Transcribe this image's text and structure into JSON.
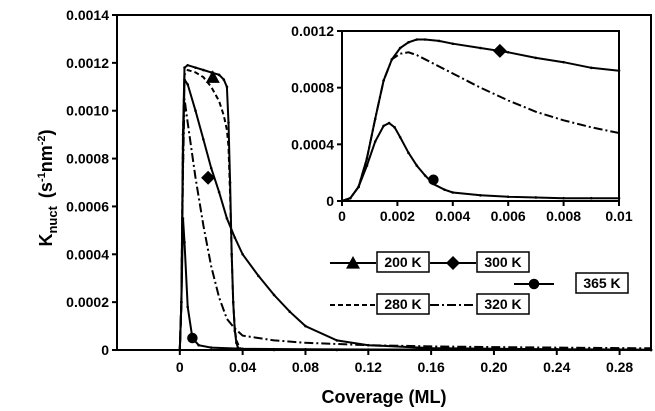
{
  "chart_data": [
    {
      "type": "line",
      "panel": "main",
      "xlabel": "Coverage (ML)",
      "ylabel_main": "K",
      "ylabel_sub": "nuct",
      "ylabel_unit": "(s",
      "ylabel_unit_sup1": "-1",
      "ylabel_unit_mid": "nm",
      "ylabel_unit_sup2": "-2",
      "ylabel_unit_end": ")",
      "xlim": [
        -0.04,
        0.3
      ],
      "ylim": [
        0,
        0.0014
      ],
      "x_tick_labels": [
        "0",
        "0.04",
        "0.08",
        "0.12",
        "0.16",
        "0.20",
        "0.24",
        "0.28"
      ],
      "y_tick_labels": [
        "0",
        "0.0002",
        "0.0004",
        "0.0006",
        "0.0008",
        "0.0010",
        "0.0012",
        "0.0014"
      ],
      "series": [
        {
          "name": "200 K",
          "marker": "triangle",
          "dash": "solid",
          "x": [
            0,
            0.001,
            0.002,
            0.003,
            0.005,
            0.01,
            0.015,
            0.02,
            0.025,
            0.028,
            0.03,
            0.031,
            0.032,
            0.033,
            0.034,
            0.035,
            0.036,
            0.037,
            0.04,
            0.06,
            0.1,
            0.2,
            0.3
          ],
          "y": [
            0,
            0.0002,
            0.0009,
            0.00118,
            0.00119,
            0.00118,
            0.00117,
            0.00116,
            0.00115,
            0.00113,
            0.0011,
            0.00095,
            0.0007,
            0.0004,
            0.0002,
            8e-05,
            3e-05,
            1e-05,
            0,
            0,
            0,
            0,
            0
          ],
          "marker_points": [
            [
              0.021,
              0.00114
            ]
          ]
        },
        {
          "name": "300 K",
          "marker": "diamond",
          "dash": "solid",
          "x": [
            0,
            0.001,
            0.002,
            0.003,
            0.005,
            0.01,
            0.015,
            0.02,
            0.025,
            0.03,
            0.035,
            0.04,
            0.05,
            0.06,
            0.07,
            0.08,
            0.1,
            0.12,
            0.16,
            0.2,
            0.24,
            0.28,
            0.3
          ],
          "y": [
            0,
            0.0002,
            0.0008,
            0.00113,
            0.00111,
            0.001,
            0.00088,
            0.00076,
            0.00066,
            0.00055,
            0.00047,
            0.0004,
            0.00031,
            0.00023,
            0.00016,
            0.0001,
            4e-05,
            2e-05,
            8e-06,
            5e-06,
            3e-06,
            2e-06,
            1e-06
          ],
          "marker_points": [
            [
              0.018,
              0.00072
            ]
          ]
        },
        {
          "name": "365 K",
          "marker": "circle",
          "dash": "solid",
          "x": [
            0,
            0.001,
            0.002,
            0.003,
            0.005,
            0.008,
            0.012,
            0.02,
            0.04,
            0.08,
            0.12,
            0.16,
            0.2,
            0.24,
            0.28,
            0.3
          ],
          "y": [
            0,
            0.0002,
            0.00055,
            0.00045,
            0.00018,
            5e-05,
            2e-05,
            1e-05,
            5e-06,
            3e-06,
            2e-06,
            2e-06,
            1e-06,
            1e-06,
            1e-06,
            0
          ],
          "marker_points": [
            [
              0.008,
              5e-05
            ]
          ]
        },
        {
          "name": "280 K",
          "marker": "none",
          "dash": "dashed",
          "x": [
            0,
            0.001,
            0.002,
            0.003,
            0.005,
            0.01,
            0.015,
            0.02,
            0.025,
            0.028,
            0.03,
            0.031,
            0.032,
            0.033,
            0.034,
            0.035,
            0.036,
            0.038,
            0.04,
            0.06,
            0.3
          ],
          "y": [
            0,
            0.0002,
            0.0009,
            0.00115,
            0.00117,
            0.00116,
            0.00114,
            0.0011,
            0.00104,
            0.00098,
            0.00092,
            0.00085,
            0.00065,
            0.0004,
            0.0002,
            9e-05,
            4e-05,
            1e-05,
            0,
            0,
            0
          ]
        },
        {
          "name": "320 K",
          "marker": "none",
          "dash": "dashdot",
          "x": [
            0,
            0.001,
            0.002,
            0.003,
            0.005,
            0.01,
            0.015,
            0.02,
            0.025,
            0.03,
            0.035,
            0.04,
            0.05,
            0.06,
            0.08,
            0.1,
            0.12,
            0.16,
            0.2,
            0.24,
            0.28,
            0.3
          ],
          "y": [
            0,
            0.0002,
            0.00075,
            0.00105,
            0.00095,
            0.00072,
            0.00052,
            0.00035,
            0.00022,
            0.00013,
            9e-05,
            6e-05,
            5e-05,
            4e-05,
            3e-05,
            2.5e-05,
            2e-05,
            1.5e-05,
            1.2e-05,
            1e-05,
            8e-06,
            7e-06
          ]
        }
      ]
    },
    {
      "type": "line",
      "panel": "inset",
      "xlim": [
        0,
        0.01
      ],
      "ylim": [
        0,
        0.0012
      ],
      "x_tick_labels": [
        "0",
        "0.002",
        "0.004",
        "0.006",
        "0.008",
        "0.01"
      ],
      "y_tick_labels": [
        "0",
        "0.0004",
        "0.0008",
        "0.0012"
      ],
      "series": [
        {
          "name": "300 K",
          "marker": "diamond",
          "dash": "solid",
          "x": [
            0,
            0.0003,
            0.0006,
            0.0009,
            0.0012,
            0.0015,
            0.0018,
            0.0021,
            0.0024,
            0.0027,
            0.003,
            0.0035,
            0.004,
            0.005,
            0.006,
            0.007,
            0.008,
            0.009,
            0.01
          ],
          "y": [
            0,
            2e-05,
            0.0001,
            0.0003,
            0.00058,
            0.00085,
            0.001,
            0.00108,
            0.00112,
            0.00114,
            0.00114,
            0.00113,
            0.00111,
            0.00108,
            0.00105,
            0.00101,
            0.00098,
            0.00094,
            0.00092
          ],
          "marker_points": [
            [
              0.0057,
              0.00106
            ]
          ]
        },
        {
          "name": "320 K",
          "marker": "none",
          "dash": "dashdot",
          "x": [
            0,
            0.0003,
            0.0006,
            0.0009,
            0.0012,
            0.0015,
            0.0018,
            0.0021,
            0.0024,
            0.0027,
            0.003,
            0.0035,
            0.004,
            0.005,
            0.006,
            0.007,
            0.008,
            0.009,
            0.01
          ],
          "y": [
            0,
            2e-05,
            0.0001,
            0.0003,
            0.00058,
            0.00085,
            0.001,
            0.00104,
            0.00105,
            0.00103,
            0.001,
            0.00095,
            0.0009,
            0.0008,
            0.00071,
            0.00063,
            0.00057,
            0.00052,
            0.00048
          ]
        },
        {
          "name": "365 K",
          "marker": "circle",
          "dash": "solid",
          "x": [
            0,
            0.0003,
            0.0006,
            0.0009,
            0.0012,
            0.0015,
            0.0017,
            0.0019,
            0.0021,
            0.0024,
            0.0027,
            0.003,
            0.0033,
            0.0037,
            0.004,
            0.005,
            0.006,
            0.007,
            0.008,
            0.009,
            0.01
          ],
          "y": [
            0,
            2e-05,
            0.0001,
            0.00025,
            0.00042,
            0.00053,
            0.00055,
            0.00052,
            0.00045,
            0.00034,
            0.00025,
            0.00018,
            0.00012,
            8e-05,
            6e-05,
            4e-05,
            3e-05,
            2.5e-05,
            2e-05,
            2e-05,
            2e-05
          ],
          "marker_points": [
            [
              0.0033,
              0.00015
            ]
          ]
        }
      ]
    }
  ],
  "legend_items": [
    {
      "label": "200 K",
      "marker": "triangle",
      "dash": "solid"
    },
    {
      "label": "300 K",
      "marker": "diamond",
      "dash": "solid"
    },
    {
      "label": "365 K",
      "marker": "circle",
      "dash": "solid"
    },
    {
      "label": "280 K",
      "marker": "none",
      "dash": "dashed"
    },
    {
      "label": "320 K",
      "marker": "none",
      "dash": "dashdot"
    }
  ]
}
